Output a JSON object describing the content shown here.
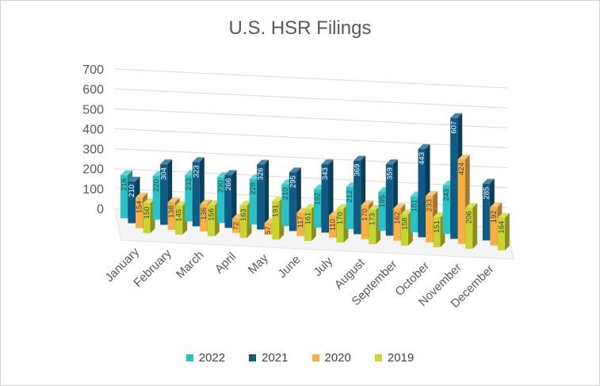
{
  "chart_data": {
    "type": "bar",
    "title": "U.S. HSR Filings",
    "xlabel": "",
    "ylabel": "",
    "ylim": [
      0,
      700
    ],
    "yticks": [
      700,
      600,
      500,
      400,
      300,
      200,
      100,
      0
    ],
    "categories": [
      "January",
      "February",
      "March",
      "April",
      "May",
      "June",
      "July",
      "August",
      "September",
      "October",
      "November",
      "December"
    ],
    "series": [
      {
        "name": "2022",
        "color": "#27C3C6",
        "values": [
          216,
          220,
          233,
          230,
          228,
          210,
          192,
          212,
          195,
          181,
          243,
          null
        ]
      },
      {
        "name": "2021",
        "color": "#0E5B86",
        "values": [
          210,
          304,
          323,
          266,
          326,
          295,
          343,
          369,
          359,
          443,
          607,
          285
        ]
      },
      {
        "name": "2020",
        "color": "#F8AF44",
        "values": [
          154,
          138,
          136,
          72,
          57,
          117,
          110,
          170,
          162,
          233,
          424,
          192
        ]
      },
      {
        "name": "2019",
        "color": "#C9D52C",
        "values": [
          150,
          145,
          156,
          163,
          191,
          161,
          170,
          173,
          158,
          151,
          206,
          164
        ]
      }
    ],
    "grid": true,
    "legend": "bottom"
  }
}
